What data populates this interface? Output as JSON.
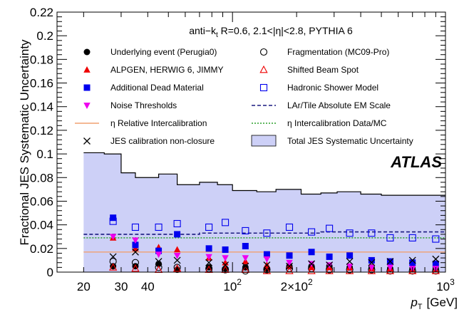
{
  "chart_data": {
    "type": "scatter",
    "header": "anti−k t R=0.6, 2.1<|η|<2.8, PYTHIA 6",
    "header_parts": {
      "pre": "anti−k",
      "sub": "t",
      "post": " R=0.6, 2.1<|η|<2.8, PYTHIA 6"
    },
    "atlas_label": "ATLAS",
    "ylabel": "Fractional JES Systematic Uncertainty",
    "xlabel": {
      "main": "p",
      "sub": "T",
      "unit": "[GeV]"
    },
    "x_scale": "log",
    "xlim": [
      15,
      1000
    ],
    "ylim": [
      0,
      0.22
    ],
    "x_ticks": [
      {
        "value": 20,
        "label": "20"
      },
      {
        "value": 30,
        "label": "30"
      },
      {
        "value": 40,
        "label": "40"
      },
      {
        "value": 100,
        "label": "10",
        "sup": "2"
      },
      {
        "value": 200,
        "label": "2×10",
        "sup": "2"
      },
      {
        "value": 1000,
        "label": "10",
        "sup": "3"
      }
    ],
    "y_ticks": [
      0,
      0.02,
      0.04,
      0.06,
      0.08,
      0.1,
      0.12,
      0.14,
      0.16,
      0.18,
      0.2,
      0.22
    ],
    "y_tick_labels": [
      "0",
      "0.02",
      "0.04",
      "0.06",
      "0.08",
      "0.1",
      "0.12",
      "0.14",
      "0.16",
      "0.18",
      "0.2",
      "0.22"
    ],
    "bin_edges": [
      20,
      25,
      30,
      35,
      45,
      55,
      70,
      85,
      100,
      130,
      160,
      210,
      260,
      310,
      400,
      500,
      600,
      800,
      1000
    ],
    "bin_centers": [
      22.5,
      27.5,
      32.5,
      40,
      50,
      62.5,
      77.5,
      92.5,
      115,
      145,
      185,
      235,
      285,
      355,
      450,
      550,
      700,
      900
    ],
    "total": {
      "name": "Total JES Systematic Uncertainty",
      "color": "#cdd0f7",
      "line_color": "#000000",
      "values": [
        0.101,
        0.1,
        0.084,
        0.08,
        0.083,
        0.074,
        0.076,
        0.074,
        0.069,
        0.068,
        0.07,
        0.066,
        0.067,
        0.068,
        0.066,
        0.065,
        0.065,
        0.065
      ]
    },
    "lines": [
      {
        "name": "LAr/Tile Absolute EM Scale",
        "style": "dashed",
        "color": "#1a1a80",
        "values": [
          0.032,
          0.032,
          0.032,
          0.032,
          0.032,
          0.032,
          0.033,
          0.033,
          0.033,
          0.033,
          0.033,
          0.033,
          0.034,
          0.034,
          0.034,
          0.034,
          0.034,
          0.034
        ]
      },
      {
        "name": "η Intercalibration Data/MC",
        "style": "dotted",
        "color": "#2ca02c",
        "values": [
          0.029,
          0.029,
          0.029,
          0.029,
          0.029,
          0.029,
          0.029,
          0.029,
          0.029,
          0.029,
          0.029,
          0.029,
          0.029,
          0.029,
          0.029,
          0.029,
          0.029,
          0.029
        ]
      },
      {
        "name": "η Relative Intercalibration",
        "style": "solid",
        "color": "#f0a070",
        "values": [
          0.017,
          0.017,
          0.017,
          0.017,
          0.017,
          0.017,
          0.017,
          0.017,
          0.017,
          0.017,
          0.017,
          0.017,
          0.017,
          0.017,
          0.017,
          0.017,
          0.017,
          0.017
        ]
      }
    ],
    "markers": [
      {
        "name": "Underlying event (Perugia0)",
        "marker": "circle-filled",
        "color": "#000000",
        "x": [
          27.5,
          35,
          45,
          55,
          77.5,
          92.5,
          115,
          145,
          185,
          235,
          285,
          355,
          450,
          550,
          700,
          900
        ],
        "y": [
          0.005,
          0.005,
          0.007,
          0.002,
          0.004,
          0.003,
          0.004,
          0.003,
          0.005,
          0.005,
          0.005,
          0.004,
          0.004,
          0.003,
          0.003,
          0.003
        ]
      },
      {
        "name": "Fragmentation (MC09-Pro)",
        "marker": "circle-open",
        "color": "#000000",
        "x": [
          27.5,
          35,
          45,
          55,
          77.5,
          92.5,
          115,
          145,
          185,
          235,
          285,
          355,
          450,
          550,
          700,
          900
        ],
        "y": [
          0.009,
          0.008,
          0.004,
          0.004,
          0.003,
          0.002,
          0.001,
          0.002,
          0.003,
          0.003,
          0.002,
          0.002,
          0.002,
          0.001,
          0.001,
          0.001
        ]
      },
      {
        "name": "ALPGEN, HERWIG 6, JIMMY",
        "marker": "triangle-filled",
        "color": "#ee0000",
        "x": [
          27.5,
          35,
          45,
          55,
          77.5,
          92.5,
          115,
          145,
          185,
          235,
          285,
          355,
          450,
          550,
          700,
          900
        ],
        "y": [
          0.029,
          0.02,
          0.021,
          0.019,
          0.012,
          0.008,
          0.009,
          0.006,
          0.005,
          0.004,
          0.004,
          0.004,
          0.003,
          0.003,
          0.002,
          0.002
        ]
      },
      {
        "name": "Shifted Beam Spot",
        "marker": "triangle-open",
        "color": "#ee0000",
        "x": [
          27.5,
          35,
          45,
          55,
          77.5,
          92.5,
          115,
          145,
          185,
          235,
          285,
          355,
          450,
          550,
          700,
          900
        ],
        "y": [
          0.004,
          0.003,
          0.002,
          0.003,
          0.002,
          0.002,
          0.002,
          0.001,
          0.001,
          0.001,
          0.001,
          0.001,
          0.001,
          0.001,
          0.001,
          0.001
        ]
      },
      {
        "name": "Additional Dead Material",
        "marker": "square-filled",
        "color": "#0000ee",
        "x": [
          27.5,
          35,
          45,
          55,
          77.5,
          92.5,
          115,
          145,
          185,
          235,
          285,
          355,
          450,
          550,
          700,
          900
        ],
        "y": [
          0.046,
          0.023,
          0.018,
          0.032,
          0.02,
          0.019,
          0.022,
          0.015,
          0.014,
          0.017,
          0.013,
          0.014,
          0.01,
          0.009,
          0.008,
          0.007
        ]
      },
      {
        "name": "Hadronic Shower Model",
        "marker": "square-open",
        "color": "#0000ee",
        "x": [
          27.5,
          35,
          45,
          55,
          77.5,
          92.5,
          115,
          145,
          185,
          235,
          285,
          355,
          450,
          550,
          700,
          900
        ],
        "y": [
          0.043,
          0.038,
          0.038,
          0.041,
          0.038,
          0.042,
          0.035,
          0.033,
          0.038,
          0.034,
          0.037,
          0.033,
          0.033,
          0.029,
          0.029,
          0.028
        ]
      },
      {
        "name": "Noise Thresholds",
        "marker": "triangle-down-filled",
        "color": "#ee00ee",
        "x": [
          27.5,
          35,
          45,
          55,
          77.5,
          92.5,
          115,
          145,
          185,
          235,
          285,
          355,
          450,
          550,
          700,
          900
        ],
        "y": [
          0.03,
          0.027,
          0.015,
          0.014,
          0.013,
          0.012,
          0.012,
          0.011,
          0.008,
          0.007,
          0.006,
          0.005,
          0.004,
          0.004,
          0.003,
          0.003
        ]
      },
      {
        "name": "JES calibration non-closure",
        "marker": "cross",
        "color": "#000000",
        "x": [
          27.5,
          35,
          45,
          55,
          77.5,
          92.5,
          115,
          145,
          185,
          235,
          285,
          355,
          450,
          550,
          700,
          900
        ],
        "y": [
          0.013,
          0.017,
          0.009,
          0.01,
          0.008,
          0.006,
          0.005,
          0.006,
          0.005,
          0.007,
          0.006,
          0.009,
          0.008,
          0.009,
          0.01,
          0.011
        ]
      }
    ],
    "legend": {
      "placement": "top",
      "left_column": [
        "Underlying event (Perugia0)",
        "ALPGEN, HERWIG 6, JIMMY",
        "Additional Dead Material",
        "Noise Thresholds",
        "η Relative Intercalibration",
        "JES calibration non-closure"
      ],
      "right_column": [
        "Fragmentation (MC09-Pro)",
        "Shifted Beam Spot",
        "Hadronic Shower Model",
        "LAr/Tile Absolute EM Scale",
        "η Intercalibration Data/MC",
        "Total JES Systematic Uncertainty"
      ]
    }
  }
}
